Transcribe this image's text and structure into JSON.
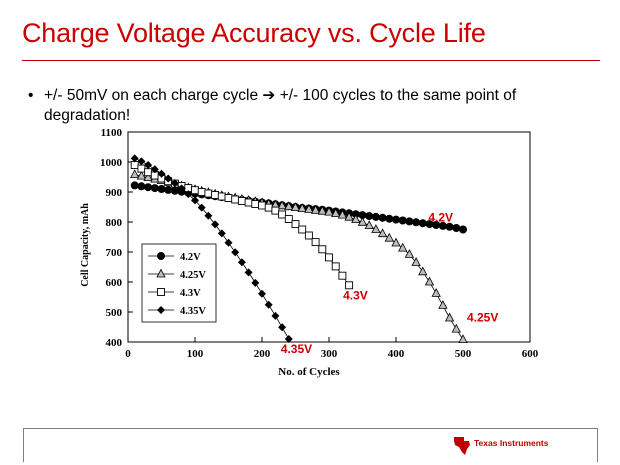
{
  "slide": {
    "title": "Charge Voltage Accuracy vs. Cycle Life",
    "bullet_marker": "•",
    "bullet_text": "+/- 50mV on each charge cycle ➔ +/- 100 cycles to the same point of degradation!",
    "logo_text": "Texas Instruments",
    "colors": {
      "title": "#cc0000",
      "label": "#cc0000",
      "logo": "#c00000"
    }
  },
  "chart_data": {
    "type": "line",
    "title": "",
    "xlabel": "No. of Cycles",
    "ylabel": "Cell Capacity, mAh",
    "xlim": [
      0,
      600
    ],
    "ylim": [
      400,
      1100
    ],
    "xticks": [
      0,
      100,
      200,
      300,
      400,
      500,
      600
    ],
    "yticks": [
      400,
      500,
      600,
      700,
      800,
      900,
      1000,
      1100
    ],
    "grid": false,
    "legend_position": "bottom-left",
    "series": [
      {
        "name": "4.2V",
        "marker": "circle-filled",
        "end_label": "4.2V",
        "x": [
          10,
          20,
          30,
          40,
          50,
          60,
          70,
          80,
          90,
          100,
          110,
          120,
          130,
          140,
          150,
          160,
          170,
          180,
          190,
          200,
          210,
          220,
          230,
          240,
          250,
          260,
          270,
          280,
          290,
          300,
          310,
          320,
          330,
          340,
          350,
          360,
          370,
          380,
          390,
          400,
          410,
          420,
          430,
          440,
          450,
          460,
          470,
          480,
          490,
          500
        ],
        "y": [
          922,
          919,
          916,
          913,
          910,
          907,
          904,
          901,
          898,
          895,
          892,
          889,
          886,
          883,
          880,
          877,
          874,
          871,
          868,
          865,
          862,
          859,
          856,
          853,
          850,
          847,
          845,
          843,
          841,
          838,
          835,
          832,
          829,
          826,
          823,
          820,
          817,
          814,
          811,
          808,
          805,
          802,
          799,
          796,
          793,
          790,
          787,
          784,
          780,
          775
        ]
      },
      {
        "name": "4.25V",
        "marker": "triangle-open",
        "end_label": "4.25V",
        "x": [
          10,
          20,
          30,
          40,
          50,
          60,
          70,
          80,
          90,
          100,
          110,
          120,
          130,
          140,
          150,
          160,
          170,
          180,
          190,
          200,
          210,
          220,
          230,
          240,
          250,
          260,
          270,
          280,
          290,
          300,
          310,
          320,
          330,
          340,
          350,
          360,
          370,
          380,
          390,
          400,
          410,
          420,
          430,
          440,
          450,
          460,
          470,
          480,
          490,
          500
        ],
        "y": [
          958,
          953,
          948,
          943,
          938,
          932,
          926,
          920,
          914,
          908,
          903,
          898,
          893,
          888,
          884,
          880,
          876,
          872,
          868,
          864,
          860,
          857,
          854,
          851,
          848,
          845,
          842,
          839,
          836,
          833,
          828,
          823,
          816,
          808,
          799,
          788,
          775,
          761,
          746,
          730,
          713,
          692,
          665,
          634,
          600,
          562,
          522,
          480,
          443,
          408
        ]
      },
      {
        "name": "4.3V",
        "marker": "square-open",
        "end_label": "4.3V",
        "x": [
          10,
          20,
          30,
          40,
          50,
          60,
          70,
          80,
          90,
          100,
          110,
          120,
          130,
          140,
          150,
          160,
          170,
          180,
          190,
          200,
          210,
          220,
          230,
          240,
          250,
          260,
          270,
          280,
          290,
          300,
          310,
          320,
          330
        ],
        "y": [
          990,
          978,
          966,
          955,
          945,
          936,
          928,
          920,
          913,
          906,
          900,
          895,
          890,
          885,
          880,
          875,
          870,
          865,
          860,
          855,
          848,
          838,
          825,
          810,
          793,
          775,
          755,
          733,
          709,
          682,
          652,
          621,
          589
        ]
      },
      {
        "name": "4.35V",
        "marker": "diamond-filled",
        "end_label": "4.35V",
        "x": [
          10,
          20,
          30,
          40,
          50,
          60,
          70,
          80,
          90,
          100,
          110,
          120,
          130,
          140,
          150,
          160,
          170,
          180,
          190,
          200,
          210,
          220,
          230,
          240
        ],
        "y": [
          1012,
          1002,
          990,
          976,
          961,
          945,
          929,
          912,
          893,
          872,
          848,
          821,
          792,
          762,
          731,
          699,
          666,
          632,
          597,
          561,
          524,
          487,
          449,
          410
        ]
      }
    ]
  }
}
